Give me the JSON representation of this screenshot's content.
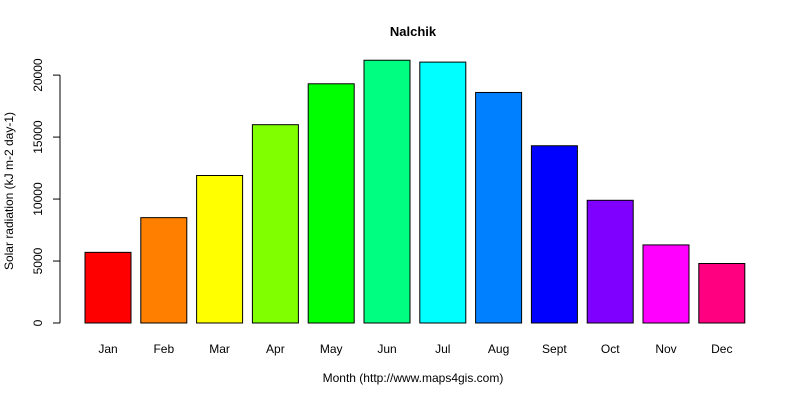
{
  "chart_data": {
    "type": "bar",
    "title": "Nalchik",
    "xlabel": "Month (http://www.maps4gis.com)",
    "ylabel": "Solar radiation (kJ m-2 day-1)",
    "categories": [
      "Jan",
      "Feb",
      "Mar",
      "Apr",
      "May",
      "Jun",
      "Jul",
      "Aug",
      "Sept",
      "Oct",
      "Nov",
      "Dec"
    ],
    "values": [
      5700,
      8500,
      11900,
      16000,
      19300,
      21200,
      21050,
      18600,
      14300,
      9900,
      6300,
      4800
    ],
    "colors": [
      "#FF0000",
      "#FF8000",
      "#FFFF00",
      "#80FF00",
      "#00FF00",
      "#00FF80",
      "#00FFFF",
      "#0080FF",
      "#0000FF",
      "#8000FF",
      "#FF00FF",
      "#FF0080"
    ],
    "yticks": [
      0,
      5000,
      10000,
      15000,
      20000
    ],
    "ylim": [
      0,
      21500
    ],
    "grid": false,
    "legend": "none"
  }
}
